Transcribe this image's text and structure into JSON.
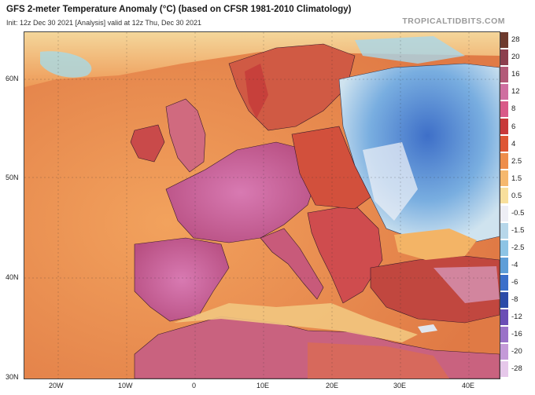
{
  "header": {
    "title": "GFS 2-meter Temperature Anomaly (°C) (based on CFSR 1981-2010 Climatology)",
    "subtitle": "Init: 12z Dec 30 2021   [Analysis]   valid at 12z Thu, Dec 30 2021",
    "brand": "TROPICALTIDBITS.COM"
  },
  "map": {
    "lat_labels": [
      "60N",
      "50N",
      "40N",
      "30N"
    ],
    "lon_labels": [
      "20W",
      "10W",
      "0",
      "10E",
      "20E",
      "30E",
      "40E"
    ]
  },
  "legend": {
    "levels": [
      {
        "label": "28",
        "color": "#6e3a2e"
      },
      {
        "label": "20",
        "color": "#8c3f4e"
      },
      {
        "label": "16",
        "color": "#b35a78"
      },
      {
        "label": "12",
        "color": "#cf6fa0"
      },
      {
        "label": "8",
        "color": "#d95a88"
      },
      {
        "label": "6",
        "color": "#c8393a"
      },
      {
        "label": "4",
        "color": "#de5634"
      },
      {
        "label": "2.5",
        "color": "#ee8d4c"
      },
      {
        "label": "1.5",
        "color": "#f5b86e"
      },
      {
        "label": "0.5",
        "color": "#f8df9c"
      },
      {
        "label": "-0.5",
        "color": "#eeeef5"
      },
      {
        "label": "-1.5",
        "color": "#b7d7ea"
      },
      {
        "label": "-2.5",
        "color": "#8dc4e5"
      },
      {
        "label": "-4",
        "color": "#5e9ed8"
      },
      {
        "label": "-6",
        "color": "#3b6fca"
      },
      {
        "label": "-8",
        "color": "#2c4ba8"
      },
      {
        "label": "-12",
        "color": "#6a4eb5"
      },
      {
        "label": "-16",
        "color": "#9a72c8"
      },
      {
        "label": "-20",
        "color": "#c49ad8"
      },
      {
        "label": "-28",
        "color": "#e6c8ea"
      }
    ]
  }
}
